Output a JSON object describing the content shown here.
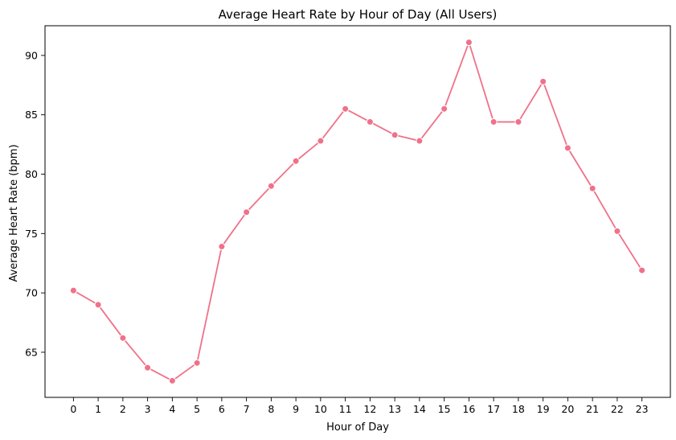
{
  "chart_data": {
    "type": "line",
    "title": "Average Heart Rate by Hour of Day (All Users)",
    "xlabel": "Hour of Day",
    "ylabel": "Average Heart Rate (bpm)",
    "x": [
      0,
      1,
      2,
      3,
      4,
      5,
      6,
      7,
      8,
      9,
      10,
      11,
      12,
      13,
      14,
      15,
      16,
      17,
      18,
      19,
      20,
      21,
      22,
      23
    ],
    "series": [
      {
        "values": [
          70.2,
          69.0,
          66.2,
          63.7,
          62.6,
          64.1,
          73.9,
          76.8,
          79.0,
          81.1,
          82.8,
          85.5,
          84.4,
          83.3,
          82.8,
          85.5,
          91.1,
          84.4,
          84.4,
          87.8,
          82.2,
          78.8,
          75.2,
          71.9
        ],
        "color": "#f07189"
      }
    ],
    "xticks": [
      "0",
      "1",
      "2",
      "3",
      "4",
      "5",
      "6",
      "7",
      "8",
      "9",
      "10",
      "11",
      "12",
      "13",
      "14",
      "15",
      "16",
      "17",
      "18",
      "19",
      "20",
      "21",
      "22",
      "23"
    ],
    "yticks": [
      65,
      70,
      75,
      80,
      85,
      90
    ],
    "xlim": [
      -1.15,
      24.15
    ],
    "ylim": [
      61.2,
      92.5
    ],
    "grid": false,
    "legend": "none"
  }
}
